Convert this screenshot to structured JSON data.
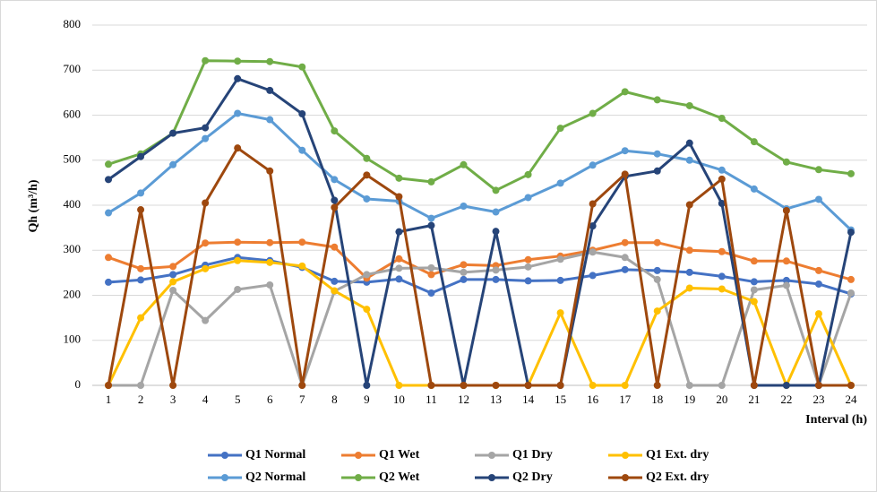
{
  "chart_data": {
    "type": "line",
    "y_label": "Qh (m³/h)",
    "x_label": "Interval (h)",
    "categories": [
      "1",
      "2",
      "3",
      "4",
      "5",
      "6",
      "7",
      "8",
      "9",
      "10",
      "11",
      "12",
      "13",
      "14",
      "15",
      "16",
      "17",
      "18",
      "19",
      "20",
      "21",
      "22",
      "23",
      "24"
    ],
    "ylim": [
      0,
      800
    ],
    "yticks": [
      0,
      100,
      200,
      300,
      400,
      500,
      600,
      700,
      800
    ],
    "grid": true,
    "legend": "bottom",
    "series": [
      {
        "name": "Q1 Normal",
        "color": "#4472c4",
        "values": [
          229,
          234,
          246,
          267,
          284,
          277,
          262,
          231,
          229,
          236,
          205,
          235,
          235,
          232,
          233,
          244,
          257,
          255,
          251,
          242,
          230,
          233,
          225,
          203
        ]
      },
      {
        "name": "Q1 Wet",
        "color": "#ed7d31",
        "values": [
          284,
          259,
          264,
          316,
          318,
          317,
          318,
          307,
          238,
          281,
          246,
          268,
          266,
          279,
          287,
          300,
          317,
          317,
          300,
          297,
          276,
          276,
          255,
          235
        ]
      },
      {
        "name": "Q1 Dry",
        "color": "#a5a5a5",
        "values": [
          0,
          0,
          211,
          144,
          213,
          223,
          0,
          209,
          246,
          260,
          261,
          251,
          256,
          263,
          280,
          296,
          284,
          235,
          0,
          0,
          212,
          222,
          0,
          205
        ]
      },
      {
        "name": "Q1 Ext. dry",
        "color": "#ffc000",
        "values": [
          0,
          150,
          230,
          259,
          277,
          273,
          265,
          210,
          169,
          0,
          0,
          0,
          0,
          0,
          161,
          0,
          0,
          165,
          216,
          214,
          186,
          0,
          159,
          0
        ]
      },
      {
        "name": "Q2 Normal",
        "color": "#5b9bd5",
        "values": [
          383,
          427,
          490,
          548,
          604,
          590,
          522,
          457,
          414,
          409,
          371,
          398,
          385,
          417,
          449,
          489,
          521,
          514,
          500,
          478,
          436,
          392,
          413,
          345
        ]
      },
      {
        "name": "Q2 Wet",
        "color": "#70ad47",
        "values": [
          491,
          514,
          560,
          721,
          720,
          719,
          707,
          565,
          504,
          460,
          452,
          490,
          433,
          468,
          571,
          604,
          652,
          634,
          621,
          593,
          541,
          496,
          479,
          470
        ]
      },
      {
        "name": "Q2 Dry",
        "color": "#264478",
        "values": [
          457,
          508,
          560,
          572,
          681,
          655,
          603,
          411,
          0,
          341,
          355,
          0,
          342,
          0,
          0,
          354,
          464,
          476,
          538,
          404,
          0,
          0,
          0,
          340
        ]
      },
      {
        "name": "Q2 Ext. dry",
        "color": "#9e480e",
        "values": [
          0,
          390,
          0,
          405,
          527,
          476,
          0,
          395,
          467,
          419,
          0,
          0,
          0,
          0,
          0,
          403,
          469,
          0,
          401,
          458,
          0,
          388,
          0,
          0
        ]
      }
    ]
  }
}
